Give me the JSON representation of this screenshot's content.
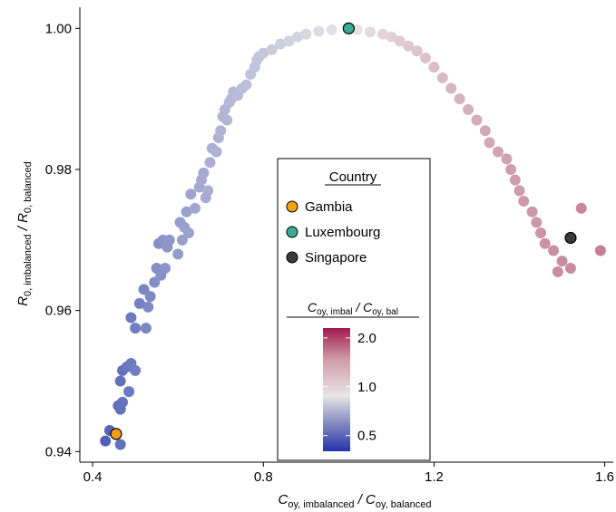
{
  "chart_data": {
    "type": "scatter",
    "xlabel": {
      "main": "C",
      "sub1": "oy, imbalanced",
      "mid": " / C",
      "sub2": "oy, balanced"
    },
    "ylabel": {
      "main": "R",
      "sub1": "0, imbalanced",
      "mid": " / R",
      "sub2": "0, balanced"
    },
    "xlim": [
      0.37,
      1.62
    ],
    "ylim": [
      0.9385,
      1.003
    ],
    "x_ticks": [
      0.4,
      0.8,
      1.2,
      1.6
    ],
    "x_tick_labels": [
      "0.4",
      "0.8",
      "1.2",
      "1.6"
    ],
    "y_ticks": [
      0.94,
      0.96,
      0.98,
      1.0
    ],
    "y_tick_labels": [
      "0.94",
      "0.96",
      "0.98",
      "1.00"
    ],
    "grid": false,
    "color_scale": {
      "title": {
        "main1": "C",
        "sub1": "oy, imbal",
        "mid": " / C",
        "sub2": "oy, bal"
      },
      "ticks": [
        0.5,
        1.0,
        2.0
      ],
      "tick_labels": [
        "0.5",
        "1.0",
        "2.0"
      ],
      "range": [
        0.4,
        2.3
      ],
      "scale": "log",
      "low_color": "#2233aa",
      "mid_color": "#e8e6e6",
      "high_color": "#a01a4a"
    },
    "legend": {
      "title": "Country",
      "entries": [
        {
          "label": "Gambia",
          "color": "#f0a017"
        },
        {
          "label": "Luxembourg",
          "color": "#3cab93"
        },
        {
          "label": "Singapore",
          "color": "#3a3a3a"
        }
      ]
    },
    "highlighted": [
      {
        "name": "Gambia",
        "x": 0.455,
        "y": 0.9425
      },
      {
        "name": "Luxembourg",
        "x": 1.0,
        "y": 1.0
      },
      {
        "name": "Singapore",
        "x": 1.52,
        "y": 0.9703
      }
    ],
    "points": [
      [
        0.43,
        0.9415
      ],
      [
        0.44,
        0.943
      ],
      [
        0.465,
        0.941
      ],
      [
        0.46,
        0.9465
      ],
      [
        0.465,
        0.946
      ],
      [
        0.47,
        0.947
      ],
      [
        0.465,
        0.95
      ],
      [
        0.47,
        0.9515
      ],
      [
        0.48,
        0.952
      ],
      [
        0.49,
        0.9525
      ],
      [
        0.5,
        0.9515
      ],
      [
        0.485,
        0.9485
      ],
      [
        0.49,
        0.959
      ],
      [
        0.5,
        0.9575
      ],
      [
        0.51,
        0.961
      ],
      [
        0.52,
        0.963
      ],
      [
        0.525,
        0.9575
      ],
      [
        0.53,
        0.9605
      ],
      [
        0.535,
        0.962
      ],
      [
        0.545,
        0.964
      ],
      [
        0.55,
        0.966
      ],
      [
        0.56,
        0.965
      ],
      [
        0.57,
        0.966
      ],
      [
        0.555,
        0.9695
      ],
      [
        0.565,
        0.97
      ],
      [
        0.575,
        0.969
      ],
      [
        0.58,
        0.97
      ],
      [
        0.6,
        0.968
      ],
      [
        0.61,
        0.97
      ],
      [
        0.605,
        0.9725
      ],
      [
        0.615,
        0.9718
      ],
      [
        0.625,
        0.971
      ],
      [
        0.62,
        0.974
      ],
      [
        0.63,
        0.9765
      ],
      [
        0.64,
        0.9745
      ],
      [
        0.65,
        0.9775
      ],
      [
        0.655,
        0.9785
      ],
      [
        0.66,
        0.9795
      ],
      [
        0.67,
        0.977
      ],
      [
        0.665,
        0.976
      ],
      [
        0.675,
        0.981
      ],
      [
        0.68,
        0.983
      ],
      [
        0.69,
        0.9825
      ],
      [
        0.695,
        0.9845
      ],
      [
        0.7,
        0.9855
      ],
      [
        0.705,
        0.9875
      ],
      [
        0.71,
        0.9885
      ],
      [
        0.715,
        0.987
      ],
      [
        0.72,
        0.9895
      ],
      [
        0.725,
        0.99
      ],
      [
        0.73,
        0.991
      ],
      [
        0.74,
        0.9905
      ],
      [
        0.75,
        0.9915
      ],
      [
        0.76,
        0.992
      ],
      [
        0.77,
        0.9935
      ],
      [
        0.78,
        0.9945
      ],
      [
        0.785,
        0.9955
      ],
      [
        0.79,
        0.996
      ],
      [
        0.8,
        0.9965
      ],
      [
        0.82,
        0.997
      ],
      [
        0.84,
        0.9978
      ],
      [
        0.86,
        0.9982
      ],
      [
        0.88,
        0.9988
      ],
      [
        0.9,
        0.9992
      ],
      [
        0.93,
        0.9996
      ],
      [
        0.96,
        0.9998
      ],
      [
        1.02,
        0.9998
      ],
      [
        1.05,
        0.9995
      ],
      [
        1.08,
        0.9992
      ],
      [
        1.1,
        0.9988
      ],
      [
        1.12,
        0.9982
      ],
      [
        1.14,
        0.9975
      ],
      [
        1.16,
        0.9968
      ],
      [
        1.18,
        0.9958
      ],
      [
        1.2,
        0.9945
      ],
      [
        1.22,
        0.993
      ],
      [
        1.24,
        0.9915
      ],
      [
        1.26,
        0.99
      ],
      [
        1.28,
        0.9885
      ],
      [
        1.3,
        0.987
      ],
      [
        1.32,
        0.9855
      ],
      [
        1.33,
        0.9838
      ],
      [
        1.35,
        0.9825
      ],
      [
        1.37,
        0.9815
      ],
      [
        1.38,
        0.98
      ],
      [
        1.39,
        0.9785
      ],
      [
        1.4,
        0.977
      ],
      [
        1.41,
        0.9755
      ],
      [
        1.43,
        0.974
      ],
      [
        1.44,
        0.9725
      ],
      [
        1.45,
        0.971
      ],
      [
        1.46,
        0.9695
      ],
      [
        1.48,
        0.9685
      ],
      [
        1.5,
        0.967
      ],
      [
        1.52,
        0.966
      ],
      [
        1.545,
        0.9745
      ],
      [
        1.59,
        0.9685
      ],
      [
        1.49,
        0.9655
      ]
    ]
  }
}
